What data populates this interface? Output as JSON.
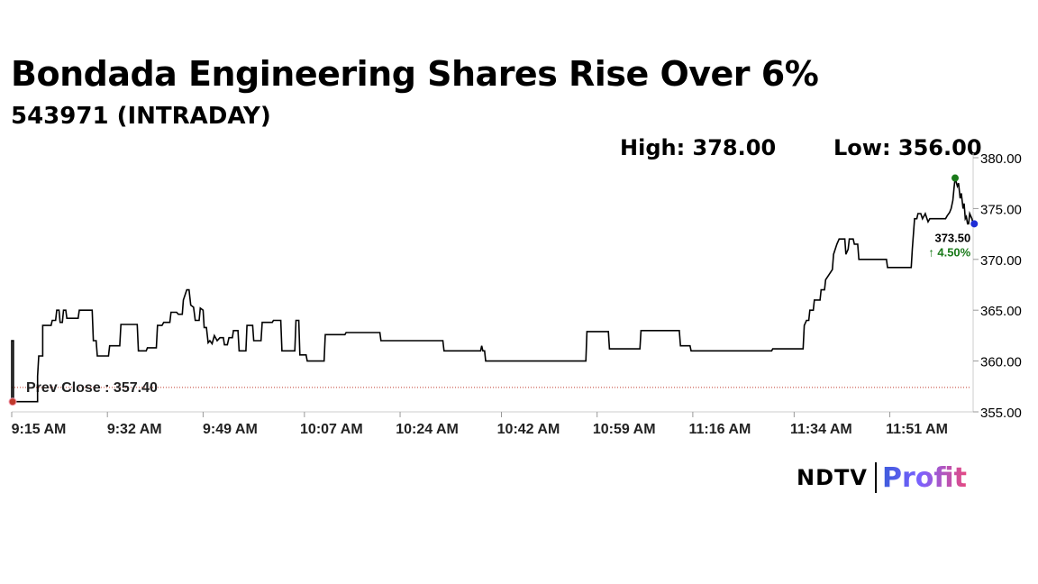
{
  "header": {
    "title": "Bondada Engineering Shares Rise Over 6%",
    "subtitle": "543971 (INTRADAY)",
    "high_label": "High: 378.00",
    "low_label": "Low: 356.00"
  },
  "chart_data": {
    "type": "line",
    "title": "Bondada Engineering Shares Rise Over 6%",
    "subtitle": "543971 (INTRADAY)",
    "x_tick_labels": [
      "9:15 AM",
      "9:32 AM",
      "9:49 AM",
      "10:07 AM",
      "10:24 AM",
      "10:42 AM",
      "10:59 AM",
      "11:16 AM",
      "11:34 AM",
      "11:51 AM"
    ],
    "x_tick_minutes": [
      0,
      17,
      34,
      52,
      69,
      87,
      104,
      121,
      139,
      156
    ],
    "y_tick_labels": [
      "380.00",
      "375.00",
      "370.00",
      "365.00",
      "360.00",
      "355.00"
    ],
    "y_ticks": [
      380,
      375,
      370,
      365,
      360,
      355
    ],
    "ylim": [
      355,
      380
    ],
    "grid": false,
    "prev_close": 357.4,
    "prev_close_label": "Prev Close : 357.40",
    "high": 378.0,
    "low": 356.0,
    "last_price_label": "373.50",
    "change_label": "↑ 4.50%",
    "colors": {
      "line": "#000000",
      "high_marker": "#1a7a1a",
      "low_marker": "#c0392b",
      "last_marker": "#1f2ed6",
      "change_text": "#1a7a1a",
      "prev_close_line": "#c0392b",
      "axis": "#cccccc"
    },
    "series": [
      {
        "points": [
          [
            0.0,
            356.0
          ],
          [
            0.0,
            362.0
          ],
          [
            0.3,
            362.0
          ],
          [
            0.3,
            356.0
          ],
          [
            4.6,
            356.0
          ],
          [
            4.6,
            358.5
          ],
          [
            4.8,
            360.5
          ],
          [
            5.5,
            360.5
          ],
          [
            5.5,
            363.5
          ],
          [
            7.0,
            363.5
          ],
          [
            7.2,
            364.0
          ],
          [
            7.8,
            364.0
          ],
          [
            8.0,
            365.0
          ],
          [
            8.4,
            365.0
          ],
          [
            8.6,
            363.8
          ],
          [
            9.0,
            363.8
          ],
          [
            9.2,
            365.0
          ],
          [
            9.6,
            365.0
          ],
          [
            9.8,
            364.2
          ],
          [
            11.8,
            364.2
          ],
          [
            12.0,
            365.0
          ],
          [
            14.3,
            365.0
          ],
          [
            14.5,
            362.0
          ],
          [
            15.0,
            362.0
          ],
          [
            15.2,
            360.5
          ],
          [
            17.2,
            360.5
          ],
          [
            17.4,
            361.5
          ],
          [
            19.2,
            361.5
          ],
          [
            19.4,
            363.6
          ],
          [
            22.3,
            363.6
          ],
          [
            22.5,
            361.0
          ],
          [
            23.9,
            361.0
          ],
          [
            24.1,
            361.3
          ],
          [
            25.7,
            361.3
          ],
          [
            25.9,
            363.5
          ],
          [
            26.7,
            363.5
          ],
          [
            27.0,
            363.8
          ],
          [
            28.1,
            363.8
          ],
          [
            28.3,
            364.8
          ],
          [
            29.3,
            364.8
          ],
          [
            29.6,
            364.6
          ],
          [
            30.3,
            364.6
          ],
          [
            30.5,
            366.0
          ],
          [
            31.1,
            367.0
          ],
          [
            31.5,
            367.0
          ],
          [
            31.8,
            365.5
          ],
          [
            32.3,
            365.3
          ],
          [
            32.6,
            364.0
          ],
          [
            33.3,
            364.0
          ],
          [
            33.5,
            365.2
          ],
          [
            34.0,
            365.0
          ],
          [
            34.2,
            363.3
          ],
          [
            34.6,
            363.3
          ],
          [
            34.9,
            361.8
          ],
          [
            35.2,
            362.0
          ],
          [
            35.6,
            361.7
          ],
          [
            36.0,
            362.5
          ],
          [
            36.5,
            362.0
          ],
          [
            37.0,
            362.3
          ],
          [
            37.6,
            362.3
          ],
          [
            37.8,
            361.6
          ],
          [
            38.3,
            361.6
          ],
          [
            38.6,
            362.3
          ],
          [
            39.2,
            362.3
          ],
          [
            39.4,
            363.0
          ],
          [
            40.2,
            363.0
          ],
          [
            40.4,
            361.0
          ],
          [
            41.6,
            361.0
          ],
          [
            41.8,
            363.5
          ],
          [
            42.8,
            363.5
          ],
          [
            43.0,
            362.0
          ],
          [
            44.3,
            362.0
          ],
          [
            44.5,
            363.8
          ],
          [
            46.3,
            363.8
          ],
          [
            46.5,
            364.0
          ],
          [
            47.8,
            364.0
          ],
          [
            48.0,
            361.0
          ],
          [
            50.3,
            361.0
          ],
          [
            50.5,
            364.0
          ],
          [
            51.0,
            364.0
          ],
          [
            51.2,
            360.6
          ],
          [
            52.3,
            360.6
          ],
          [
            52.5,
            360.0
          ],
          [
            55.5,
            360.0
          ],
          [
            55.7,
            362.6
          ],
          [
            59.2,
            362.6
          ],
          [
            59.4,
            362.8
          ],
          [
            65.4,
            362.8
          ],
          [
            65.6,
            362.0
          ],
          [
            76.6,
            362.0
          ],
          [
            76.8,
            361.0
          ],
          [
            83.3,
            361.0
          ],
          [
            83.5,
            361.5
          ],
          [
            83.7,
            361.0
          ],
          [
            84.0,
            361.0
          ],
          [
            84.2,
            360.0
          ],
          [
            102.0,
            360.0
          ],
          [
            102.2,
            362.9
          ],
          [
            106.0,
            362.9
          ],
          [
            106.2,
            361.2
          ],
          [
            111.6,
            361.2
          ],
          [
            111.8,
            363.0
          ],
          [
            118.6,
            363.0
          ],
          [
            118.8,
            361.5
          ],
          [
            120.5,
            361.5
          ],
          [
            120.7,
            361.0
          ],
          [
            135.0,
            361.0
          ],
          [
            135.2,
            361.2
          ],
          [
            140.6,
            361.2
          ],
          [
            140.8,
            363.5
          ],
          [
            141.2,
            364.0
          ],
          [
            141.6,
            364.0
          ],
          [
            141.8,
            365.0
          ],
          [
            142.4,
            365.0
          ],
          [
            142.6,
            366.0
          ],
          [
            143.6,
            366.0
          ],
          [
            143.8,
            367.0
          ],
          [
            144.4,
            367.0
          ],
          [
            144.6,
            368.0
          ],
          [
            145.2,
            368.5
          ],
          [
            145.8,
            369.0
          ],
          [
            146.0,
            370.5
          ],
          [
            146.6,
            371.5
          ],
          [
            147.0,
            372.0
          ],
          [
            148.0,
            372.0
          ],
          [
            148.2,
            370.5
          ],
          [
            148.6,
            371.0
          ],
          [
            148.8,
            372.0
          ],
          [
            149.5,
            372.0
          ],
          [
            149.7,
            371.5
          ],
          [
            150.3,
            371.5
          ],
          [
            150.5,
            370.0
          ],
          [
            155.4,
            370.0
          ],
          [
            155.6,
            369.2
          ],
          [
            159.8,
            369.2
          ],
          [
            160.0,
            371.0
          ],
          [
            160.4,
            374.0
          ],
          [
            160.8,
            374.0
          ],
          [
            161.0,
            374.5
          ],
          [
            161.5,
            374.5
          ],
          [
            161.8,
            374.0
          ],
          [
            162.3,
            374.5
          ],
          [
            162.6,
            374.0
          ],
          [
            162.8,
            373.7
          ],
          [
            163.1,
            374.0
          ],
          [
            165.9,
            374.0
          ],
          [
            166.2,
            374.3
          ],
          [
            166.6,
            374.6
          ],
          [
            166.9,
            375.0
          ],
          [
            167.2,
            375.8
          ],
          [
            167.4,
            377.0
          ],
          [
            167.6,
            378.0
          ],
          [
            168.0,
            377.2
          ],
          [
            168.2,
            377.5
          ],
          [
            168.5,
            376.0
          ],
          [
            168.7,
            376.5
          ],
          [
            169.0,
            375.0
          ],
          [
            169.2,
            375.5
          ],
          [
            169.4,
            374.0
          ],
          [
            169.6,
            374.2
          ],
          [
            169.8,
            373.5
          ],
          [
            170.0,
            373.5
          ],
          [
            170.2,
            374.5
          ],
          [
            170.6,
            374.0
          ],
          [
            170.8,
            373.5
          ],
          [
            171.0,
            373.5
          ]
        ]
      }
    ]
  },
  "branding": {
    "ndtv": "NDTV",
    "profit": "Profit"
  }
}
